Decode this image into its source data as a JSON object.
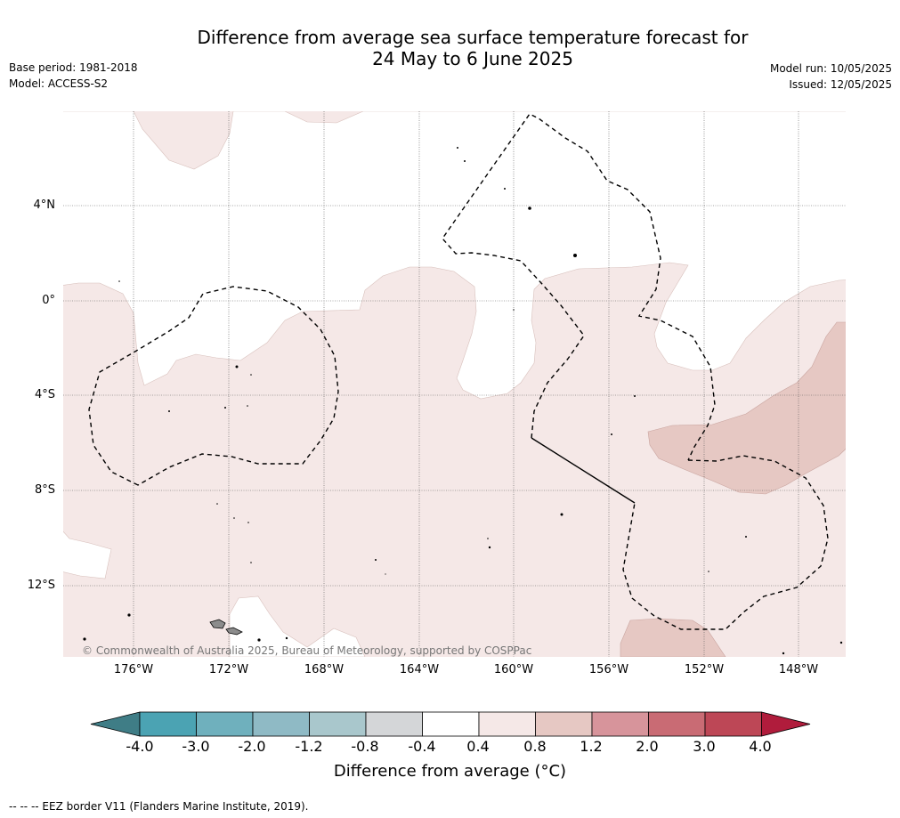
{
  "header": {
    "title_line1": "Difference from average sea surface temperature forecast for",
    "title_line2": "24 May to 6 June 2025",
    "base_period": "Base period: 1981-2018",
    "model": "Model: ACCESS-S2",
    "model_run": "Model run: 10/05/2025",
    "issued": "Issued: 12/05/2025"
  },
  "map": {
    "lat_labels": [
      "4°N",
      "0°",
      "4°S",
      "8°S",
      "12°S"
    ],
    "lon_labels": [
      "176°W",
      "172°W",
      "168°W",
      "164°W",
      "160°W",
      "156°W",
      "152°W",
      "148°W"
    ],
    "copyright": "© Commonwealth of Australia 2025, Bureau of Meteorology, supported by COSPPac",
    "colors": {
      "anomaly_0_4_to_0_8": "#f5e8e7",
      "anomaly_0_8_to_1_2": "#e6c8c3",
      "ocean_neutral": "#ffffff",
      "eez_border": "#000000",
      "land": "#8c8c8c"
    }
  },
  "colorbar": {
    "title": "Difference from average (°C)",
    "tick_labels": [
      "-4.0",
      "-3.0",
      "-2.0",
      "-1.2",
      "-0.8",
      "-0.4",
      "0.4",
      "0.8",
      "1.2",
      "2.0",
      "3.0",
      "4.0"
    ],
    "colors": [
      "#3f7d86",
      "#4ba3b3",
      "#6fb0bd",
      "#8fbac5",
      "#a9c7cc",
      "#d4d6d8",
      "#ffffff",
      "#f5e8e7",
      "#e6c8c3",
      "#d7949b",
      "#c96b74",
      "#bd4756",
      "#b01c3c"
    ]
  },
  "footer": {
    "legend_text": "--  --  -- EEZ border V11 (Flanders Marine Institute, 2019)."
  }
}
